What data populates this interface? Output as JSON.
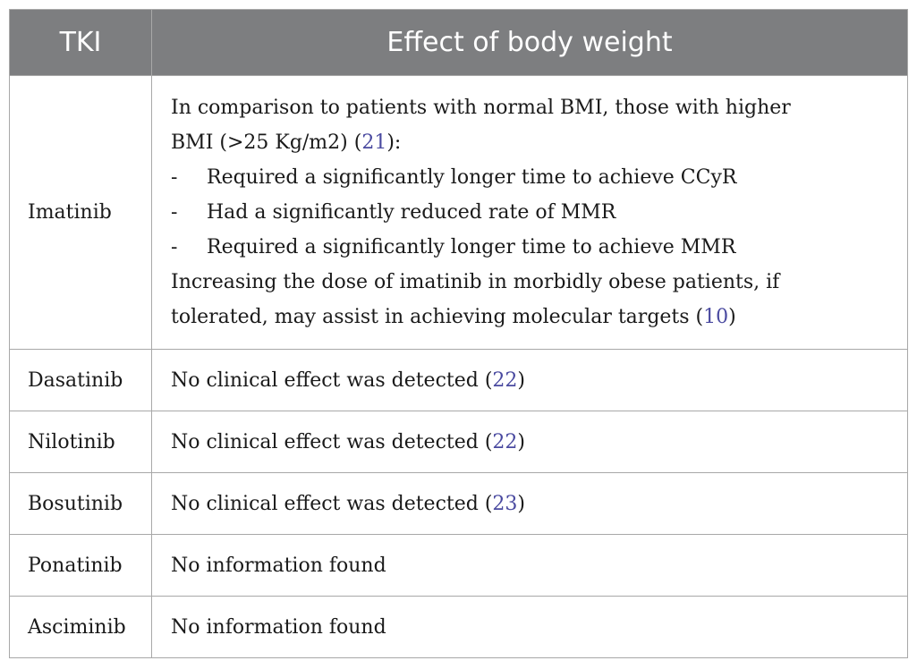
{
  "table": {
    "headers": {
      "tki": "TKI",
      "effect": "Effect of body weight"
    },
    "rows": [
      {
        "tki": "Imatinib",
        "intro_a": "In comparison to patients with normal BMI, those with higher",
        "intro_b": "BMI (>25 Kg/m2) (",
        "intro_ref": "21",
        "intro_end": "):",
        "bullets": [
          "Required a significantly longer time to achieve CCyR",
          "Had a significantly reduced rate of MMR",
          "Required a significantly longer time to achieve MMR"
        ],
        "dash": "-",
        "outro_a": "Increasing the dose of imatinib in morbidly obese patients, if",
        "outro_b": "tolerated, may assist in achieving molecular targets (",
        "outro_ref": "10",
        "outro_end": ")"
      },
      {
        "tki": "Dasatinib",
        "text": "No clinical effect was detected (",
        "ref": "22",
        "end": ")"
      },
      {
        "tki": "Nilotinib",
        "text": "No clinical effect was detected (",
        "ref": "22",
        "end": ")"
      },
      {
        "tki": "Bosutinib",
        "text": "No clinical effect was detected (",
        "ref": "23",
        "end": ")"
      },
      {
        "tki": "Ponatinib",
        "text": "No information found"
      },
      {
        "tki": "Asciminib",
        "text": "No information found"
      }
    ]
  }
}
